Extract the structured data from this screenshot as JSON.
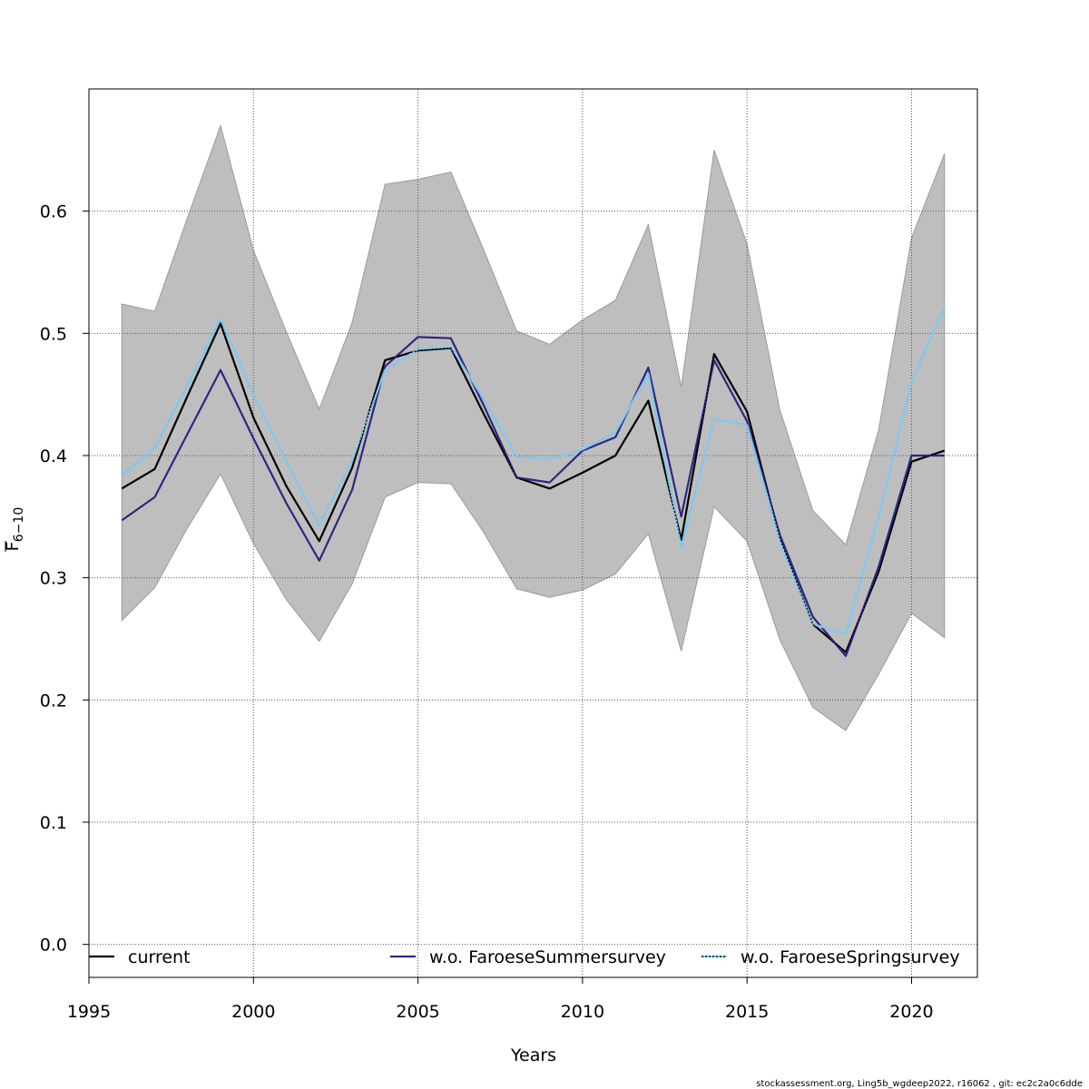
{
  "chart_data": {
    "type": "line",
    "title": "",
    "xlabel": "Years",
    "ylabel_main": "F",
    "ylabel_sub": "6−10",
    "xlim": [
      1995,
      2022
    ],
    "ylim": [
      -0.027,
      0.7
    ],
    "x_ticks": [
      1995,
      2000,
      2005,
      2010,
      2015,
      2020
    ],
    "x_tick_labels": [
      "1995",
      "2000",
      "2005",
      "2010",
      "2015",
      "2020"
    ],
    "y_ticks": [
      0.0,
      0.1,
      0.2,
      0.3,
      0.4,
      0.5,
      0.6
    ],
    "y_tick_labels": [
      "0.0",
      "0.1",
      "0.2",
      "0.3",
      "0.4",
      "0.5",
      "0.6"
    ],
    "grid": true,
    "years": [
      1996,
      1997,
      1998,
      1999,
      2000,
      2001,
      2002,
      2003,
      2004,
      2005,
      2006,
      2007,
      2008,
      2009,
      2010,
      2011,
      2012,
      2013,
      2014,
      2015,
      2016,
      2017,
      2018,
      2019,
      2020,
      2021
    ],
    "band": {
      "name": "confidence interval (current)",
      "color": "#bebebe",
      "upper": [
        0.524,
        0.518,
        0.595,
        0.67,
        0.568,
        0.501,
        0.438,
        0.509,
        0.622,
        0.626,
        0.632,
        0.568,
        0.502,
        0.491,
        0.511,
        0.527,
        0.589,
        0.456,
        0.65,
        0.573,
        0.437,
        0.355,
        0.327,
        0.421,
        0.578,
        0.647
      ],
      "lower": [
        0.265,
        0.292,
        0.341,
        0.385,
        0.328,
        0.282,
        0.248,
        0.295,
        0.366,
        0.378,
        0.377,
        0.337,
        0.291,
        0.284,
        0.29,
        0.303,
        0.336,
        0.24,
        0.358,
        0.33,
        0.249,
        0.194,
        0.175,
        0.221,
        0.271,
        0.251
      ]
    },
    "series": [
      {
        "name": "current",
        "color": "#000000",
        "style": "solid",
        "values": [
          0.373,
          0.389,
          0.449,
          0.508,
          0.431,
          0.375,
          0.33,
          0.39,
          0.478,
          0.486,
          0.488,
          0.434,
          0.382,
          0.373,
          0.386,
          0.4,
          0.445,
          0.331,
          0.483,
          0.436,
          0.332,
          0.262,
          0.239,
          0.305,
          0.395,
          0.404
        ]
      },
      {
        "name": "w.o. FaroeseSummersurvey",
        "color": "#2e2682",
        "style": "solid",
        "values": [
          0.347,
          0.366,
          0.418,
          0.47,
          0.414,
          0.361,
          0.314,
          0.372,
          0.473,
          0.497,
          0.496,
          0.441,
          0.382,
          0.378,
          0.404,
          0.415,
          0.472,
          0.35,
          0.478,
          0.428,
          0.335,
          0.268,
          0.236,
          0.309,
          0.4,
          0.4
        ]
      },
      {
        "name": "w.o. FaroeseSpringsurvey",
        "color": "#7ec8f0",
        "style": "solid",
        "values": [
          0.384,
          0.406,
          0.458,
          0.512,
          0.45,
          0.395,
          0.343,
          0.396,
          0.47,
          0.487,
          0.489,
          0.446,
          0.399,
          0.397,
          0.405,
          0.419,
          0.467,
          0.325,
          0.43,
          0.425,
          0.33,
          0.262,
          0.254,
          0.35,
          0.46,
          0.522
        ]
      }
    ],
    "legend": {
      "placement": "bottom",
      "entries": [
        "current",
        "w.o. FaroeseSummersurvey",
        "w.o. FaroeseSpringsurvey"
      ]
    }
  },
  "footer": "stockassessment.org, Ling5b_wgdeep2022, r16062 , git: ec2c2a0c6dde"
}
